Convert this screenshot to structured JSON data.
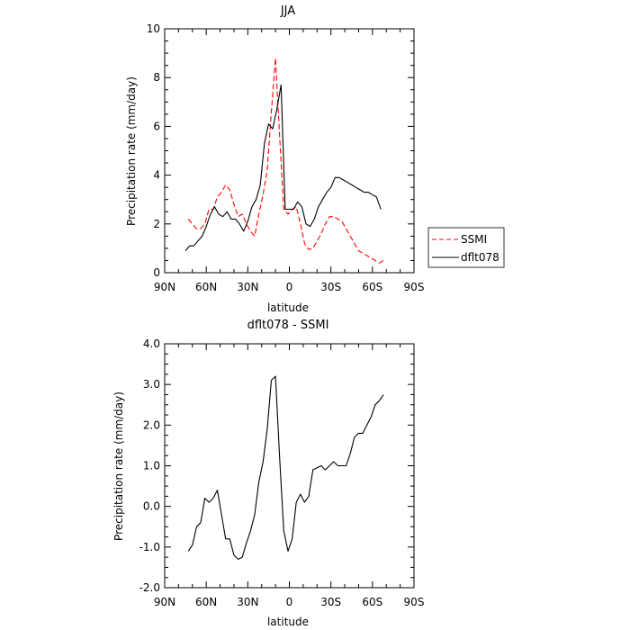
{
  "chart_data": [
    {
      "type": "line",
      "title": "JJA",
      "xlabel": "latitude",
      "ylabel": "Precipitation rate (mm/day)",
      "xlim": [
        90,
        -90
      ],
      "ylim": [
        0,
        10
      ],
      "xticks": [
        90,
        60,
        30,
        0,
        -30,
        -60,
        -90
      ],
      "xtick_labels": [
        "90N",
        "60N",
        "30N",
        "0",
        "30S",
        "60S",
        "90S"
      ],
      "yticks": [
        0,
        2,
        4,
        6,
        8,
        10
      ],
      "ytick_labels": [
        "0",
        "2",
        "4",
        "6",
        "8",
        "10"
      ],
      "legend_position": "right",
      "series": [
        {
          "name": "SSMI",
          "color": "#ff0000",
          "dash": "dashed",
          "x": [
            73,
            70,
            67,
            64,
            61,
            58,
            55,
            52,
            49,
            46,
            43,
            40,
            37,
            34,
            31,
            28,
            25,
            22,
            19,
            16,
            13,
            10,
            7,
            4,
            1,
            -2,
            -5,
            -8,
            -11,
            -14,
            -17,
            -20,
            -23,
            -26,
            -29,
            -32,
            -35,
            -38,
            -41,
            -44,
            -47,
            -50,
            -53,
            -56,
            -59,
            -62,
            -65,
            -68
          ],
          "y": [
            2.2,
            2.0,
            1.8,
            1.8,
            2.0,
            2.6,
            2.6,
            3.1,
            3.3,
            3.6,
            3.4,
            2.8,
            2.3,
            2.4,
            2.0,
            1.7,
            1.5,
            2.4,
            3.2,
            4.2,
            6.6,
            8.8,
            5.6,
            2.6,
            2.4,
            2.6,
            2.7,
            2.0,
            1.2,
            0.95,
            1.0,
            1.3,
            1.6,
            2.0,
            2.3,
            2.3,
            2.2,
            2.1,
            1.8,
            1.5,
            1.2,
            0.9,
            0.8,
            0.7,
            0.6,
            0.5,
            0.4,
            0.5
          ]
        },
        {
          "name": "dflt078",
          "color": "#000000",
          "dash": "solid",
          "x": [
            75,
            72,
            69,
            66,
            63,
            60,
            57,
            54,
            51,
            48,
            45,
            42,
            39,
            36,
            33,
            30,
            27,
            24,
            21,
            18,
            15,
            12,
            9,
            6,
            3,
            0,
            -3,
            -6,
            -9,
            -12,
            -15,
            -18,
            -21,
            -24,
            -27,
            -30,
            -33,
            -36,
            -39,
            -42,
            -45,
            -48,
            -51,
            -54,
            -57,
            -60,
            -63,
            -66
          ],
          "y": [
            0.9,
            1.1,
            1.1,
            1.3,
            1.5,
            1.9,
            2.4,
            2.7,
            2.4,
            2.3,
            2.5,
            2.2,
            2.2,
            2.0,
            1.7,
            2.1,
            2.7,
            3.0,
            3.6,
            5.3,
            6.1,
            5.9,
            6.7,
            7.7,
            2.6,
            2.6,
            2.6,
            2.9,
            2.7,
            2.0,
            1.9,
            2.2,
            2.7,
            3.0,
            3.3,
            3.5,
            3.9,
            3.9,
            3.8,
            3.7,
            3.6,
            3.5,
            3.4,
            3.3,
            3.3,
            3.2,
            3.1,
            2.6
          ]
        }
      ]
    },
    {
      "type": "line",
      "title": "dflt078 - SSMI",
      "xlabel": "latitude",
      "ylabel": "Precipitation rate (mm/day)",
      "xlim": [
        90,
        -90
      ],
      "ylim": [
        -2,
        4
      ],
      "xticks": [
        90,
        60,
        30,
        0,
        -30,
        -60,
        -90
      ],
      "xtick_labels": [
        "90N",
        "60N",
        "30N",
        "0",
        "30S",
        "60S",
        "90S"
      ],
      "yticks": [
        -2,
        -1,
        0,
        1,
        2,
        3,
        4
      ],
      "ytick_labels": [
        "-2.0",
        "-1.0",
        "0.0",
        "1.0",
        "2.0",
        "3.0",
        "4.0"
      ],
      "series": [
        {
          "color": "#000000",
          "dash": "solid",
          "x": [
            73,
            70,
            67,
            64,
            61,
            58,
            55,
            52,
            49,
            46,
            43,
            40,
            37,
            34,
            31,
            28,
            25,
            22,
            19,
            16,
            13,
            10,
            7,
            4,
            1,
            -2,
            -5,
            -8,
            -11,
            -14,
            -17,
            -20,
            -23,
            -26,
            -29,
            -32,
            -35,
            -38,
            -41,
            -44,
            -47,
            -50,
            -53,
            -56,
            -59,
            -62,
            -65,
            -68
          ],
          "y": [
            -1.1,
            -0.95,
            -0.5,
            -0.4,
            0.2,
            0.1,
            0.2,
            0.4,
            -0.2,
            -0.8,
            -0.8,
            -1.2,
            -1.3,
            -1.25,
            -0.9,
            -0.6,
            -0.2,
            0.6,
            1.1,
            1.9,
            3.1,
            3.2,
            1.2,
            -0.6,
            -1.1,
            -0.8,
            0.1,
            0.3,
            0.1,
            0.25,
            0.9,
            0.95,
            1.0,
            0.9,
            1.0,
            1.1,
            1.0,
            1.0,
            1.0,
            1.3,
            1.7,
            1.8,
            1.8,
            2.0,
            2.2,
            2.5,
            2.6,
            2.75
          ]
        }
      ]
    }
  ]
}
